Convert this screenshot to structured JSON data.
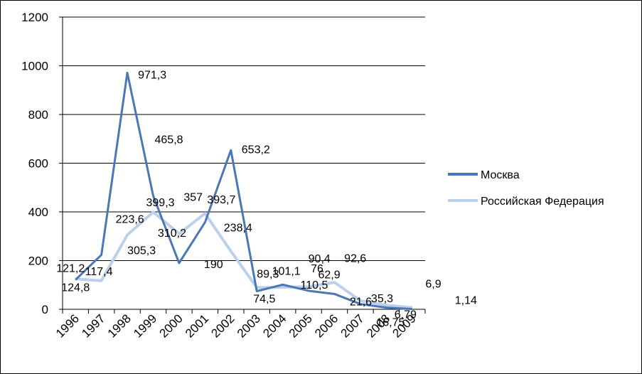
{
  "chart_data": {
    "type": "line",
    "categories": [
      "1996",
      "1997",
      "1998",
      "1999",
      "2000",
      "2001",
      "2002",
      "2003",
      "2004",
      "2005",
      "2006",
      "2007",
      "2008",
      "2009"
    ],
    "ylim": [
      0,
      1200
    ],
    "yticks": [
      "0",
      "200",
      "400",
      "600",
      "800",
      "1000",
      "1200"
    ],
    "grid": true,
    "legend_position": "right",
    "series": [
      {
        "name": "Москва",
        "color": "#4a78b4",
        "values": [
          121.2,
          223.6,
          971.3,
          465.8,
          190,
          357,
          653.2,
          74.5,
          101.1,
          76,
          62.9,
          21.6,
          6.9,
          1.14
        ],
        "labels": [
          "121,2",
          "223,6",
          "971,3",
          "465,8",
          "190",
          "357",
          "653,2",
          "74,5",
          "101,1",
          "76",
          "62,9",
          "21,6",
          "6,9",
          "1,14"
        ]
      },
      {
        "name": "Российская Федерация",
        "color": "#bcd0eb",
        "values": [
          124.8,
          117.4,
          305.3,
          399.3,
          310.2,
          393.7,
          238.4,
          89.3,
          90.4,
          92.6,
          110.5,
          35.3,
          16.75,
          6.79
        ],
        "labels": [
          "124,8",
          "117,4",
          "305,3",
          "399,3",
          "310,2",
          "393,7",
          "238,4",
          "89,3",
          "90,4",
          "92,6",
          "110,5",
          "35,3",
          "16,75",
          "6,79"
        ]
      }
    ]
  }
}
